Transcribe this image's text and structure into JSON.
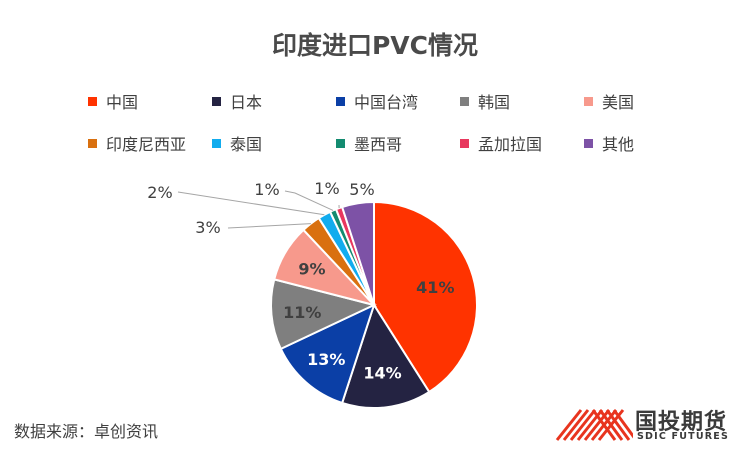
{
  "chart_data": {
    "type": "pie",
    "title": "印度进口PVC情况",
    "categories": [
      "中国",
      "日本",
      "中国台湾",
      "韩国",
      "美国",
      "印度尼西亚",
      "泰国",
      "墨西哥",
      "孟加拉国",
      "其他"
    ],
    "values": [
      41,
      14,
      13,
      11,
      9,
      3,
      2,
      1,
      1,
      5
    ],
    "value_labels": [
      "41%",
      "14%",
      "13%",
      "11%",
      "9%",
      "3%",
      "2%",
      "1%",
      "1%",
      "5%"
    ],
    "colors": [
      "#FF3300",
      "#242342",
      "#0B3FA6",
      "#7F7F7F",
      "#F7998C",
      "#D9700F",
      "#12ACEE",
      "#138B70",
      "#E8385E",
      "#7D52A6"
    ],
    "legend_position": "top"
  },
  "footer": {
    "source": "数据来源：卓创资讯"
  },
  "logo": {
    "name_cn": "国投期货",
    "name_en": "SDIC FUTURES",
    "stripe_color": "#E8341E"
  }
}
